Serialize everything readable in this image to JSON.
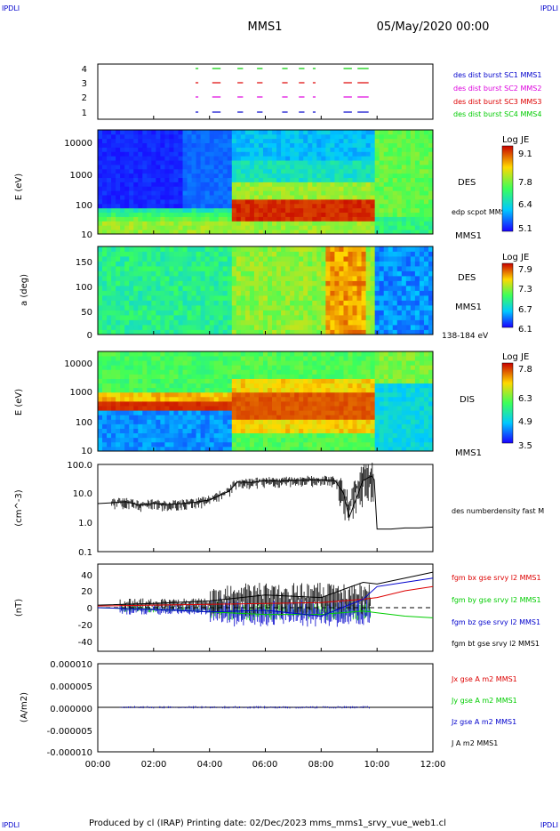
{
  "header": {
    "corner_left": "IPDLI",
    "corner_right": "IPDLI",
    "title": "MMS1",
    "date": "05/May/2020 00:00",
    "corner_bottom_left": "IPDLI",
    "corner_bottom_right": "IPDLI"
  },
  "footer": {
    "text": "Produced by cl (IRAP)   Printing date: 02/Dec/2023   mms_mms1_srvy_vue_web1.cl"
  },
  "colors": {
    "red": "#dd0000",
    "green": "#00cc00",
    "blue": "#0000cc",
    "magenta": "#dd00dd",
    "black": "#000000"
  },
  "chart_data": [
    {
      "type": "scatter",
      "name": "burst",
      "y_ticks": [
        "4",
        "3",
        "2",
        "1"
      ],
      "series": [
        {
          "name": "des dist burst SC1 MMS1",
          "color": "#0000cc"
        },
        {
          "name": "des dist burst SC2 MMS2",
          "color": "#dd00dd"
        },
        {
          "name": "des dist burst SC3 MMS3",
          "color": "#dd0000"
        },
        {
          "name": "des dist burst SC4 MMS4",
          "color": "#00cc00"
        }
      ]
    },
    {
      "type": "heatmap",
      "name": "des-energy",
      "ylabel": "E (eV)",
      "y_ticks": [
        "10000",
        "1000",
        "100",
        "10"
      ],
      "labels": [
        "DES",
        "edp scpot MMS1",
        "MMS1"
      ],
      "colorbar": {
        "title": "Log JE",
        "ticks": [
          "9.1",
          "7.8",
          "6.4",
          "5.1"
        ]
      }
    },
    {
      "type": "heatmap",
      "name": "des-pitch",
      "ylabel": "a (deg)",
      "y_ticks": [
        "150",
        "100",
        "50",
        "0"
      ],
      "labels": [
        "DES",
        "MMS1",
        "138-184 eV"
      ],
      "colorbar": {
        "title": "Log JE",
        "ticks": [
          "7.9",
          "7.3",
          "6.7",
          "6.1"
        ]
      }
    },
    {
      "type": "heatmap",
      "name": "dis-energy",
      "ylabel": "E (eV)",
      "y_ticks": [
        "10000",
        "1000",
        "100",
        "10"
      ],
      "labels": [
        "DIS",
        "MMS1"
      ],
      "colorbar": {
        "title": "Log JE",
        "ticks": [
          "7.8",
          "6.3",
          "4.9",
          "3.5"
        ]
      }
    },
    {
      "type": "line",
      "name": "density",
      "ylabel": "(cm^-3)",
      "y_ticks": [
        "100.0",
        "10.0",
        "1.0",
        "0.1"
      ],
      "ylim": [
        0.1,
        100
      ],
      "y_scale": "log",
      "series": [
        {
          "name": "des numberdensity fast M",
          "color": "#000000"
        }
      ],
      "x": [
        0,
        0.5,
        1.0,
        1.5,
        2.0,
        2.5,
        3.0,
        3.5,
        4.0,
        4.4,
        4.7,
        5.0,
        5.5,
        6.0,
        6.5,
        7.0,
        7.5,
        8.0,
        8.5,
        8.8,
        9.0,
        9.5,
        9.8,
        9.9,
        10.0,
        10.5,
        11.0,
        11.5,
        12.0
      ],
      "values": [
        4.5,
        4.8,
        5.2,
        4.0,
        4.6,
        4.2,
        4.5,
        5.0,
        6.0,
        9.0,
        12,
        25,
        24,
        28,
        27,
        28,
        29,
        30,
        28,
        10,
        1.5,
        28,
        40,
        30,
        0.6,
        0.6,
        0.65,
        0.65,
        0.7
      ]
    },
    {
      "type": "line",
      "name": "magnetic-field",
      "ylabel": "(nT)",
      "y_ticks": [
        "40",
        "20",
        "0",
        "-20",
        "-40"
      ],
      "ylim": [
        -50,
        50
      ],
      "series": [
        {
          "name": "fgm bx gse srvy l2 MMS1",
          "color": "#dd0000",
          "x": [
            0,
            2,
            4,
            6,
            8,
            9.5,
            10,
            11,
            12
          ],
          "values": [
            2,
            3,
            4,
            5,
            6,
            10,
            12,
            20,
            25
          ]
        },
        {
          "name": "fgm by gse srvy l2 MMS1",
          "color": "#00cc00",
          "x": [
            0,
            2,
            4,
            6,
            8,
            9.5,
            10,
            11,
            12
          ],
          "values": [
            0,
            -2,
            -5,
            -8,
            -8,
            -4,
            -6,
            -10,
            -12
          ]
        },
        {
          "name": "fgm bz gse srvy l2 MMS1",
          "color": "#0000cc",
          "x": [
            0,
            2,
            4,
            6,
            8,
            9.5,
            10,
            11,
            12
          ],
          "values": [
            0,
            -2,
            -5,
            -3,
            -10,
            10,
            25,
            30,
            35
          ]
        },
        {
          "name": "fgm bt gse srvy l2 MMS1",
          "color": "#000000",
          "x": [
            0,
            2,
            4,
            6,
            8,
            9.5,
            10,
            11,
            12
          ],
          "values": [
            3,
            5,
            8,
            15,
            12,
            30,
            28,
            35,
            42
          ]
        }
      ]
    },
    {
      "type": "line",
      "name": "current",
      "ylabel": "(A/m2)",
      "y_ticks": [
        "0.000010",
        "0.000005",
        "0.000000",
        "-0.000005",
        "-0.000010"
      ],
      "ylim": [
        -1e-05,
        1e-05
      ],
      "series": [
        {
          "name": "Jx gse A m2 MMS1",
          "color": "#dd0000"
        },
        {
          "name": "Jy gse A m2 MMS1",
          "color": "#00cc00"
        },
        {
          "name": "Jz gse A m2 MMS1",
          "color": "#0000cc"
        },
        {
          "name": "J A m2 MMS1",
          "color": "#000000"
        }
      ],
      "values": [
        0,
        0,
        0,
        0,
        0,
        0,
        0
      ]
    }
  ],
  "x_axis": {
    "ticks": [
      "00:00",
      "02:00",
      "04:00",
      "06:00",
      "08:00",
      "10:00",
      "12:00"
    ]
  }
}
